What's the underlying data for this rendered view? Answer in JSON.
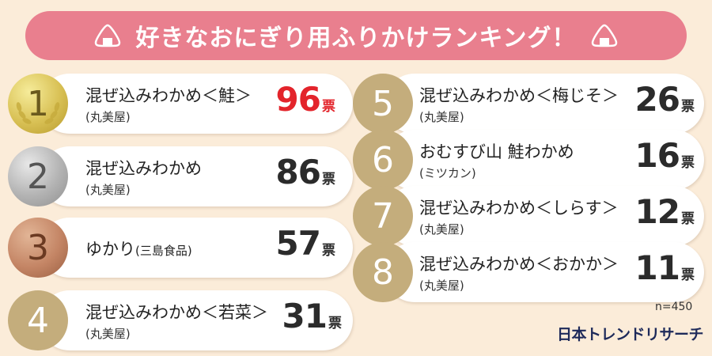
{
  "title": "好きなおにぎり用ふりかけランキング！",
  "icons": {
    "title_left": "onigiri-icon",
    "title_right": "onigiri-icon"
  },
  "colors": {
    "title_bg": "#e97f8e",
    "background": "#fbecd9",
    "first_votes": "#e3242b",
    "medal_plain": "#c4ad7c"
  },
  "vote_unit": "票",
  "sample": "n=450",
  "brand": "日本トレンドリサーチ",
  "chart_data": {
    "type": "table",
    "title": "好きなおにぎり用ふりかけランキング！",
    "columns": [
      "rank",
      "name",
      "maker",
      "votes"
    ],
    "rows": [
      {
        "rank": "1",
        "name": "混ぜ込みわかめ＜鮭＞",
        "maker": "(丸美屋)",
        "votes": 96
      },
      {
        "rank": "2",
        "name": "混ぜ込みわかめ",
        "maker": "(丸美屋)",
        "votes": 86
      },
      {
        "rank": "3",
        "name": "ゆかり",
        "maker": "(三島食品)",
        "votes": 57
      },
      {
        "rank": "4",
        "name": "混ぜ込みわかめ＜若菜＞",
        "maker": "(丸美屋)",
        "votes": 31
      },
      {
        "rank": "5",
        "name": "混ぜ込みわかめ＜梅じそ＞",
        "maker": "(丸美屋)",
        "votes": 26
      },
      {
        "rank": "6",
        "name": "おむすび山 鮭わかめ",
        "maker": "(ミツカン)",
        "votes": 16
      },
      {
        "rank": "7",
        "name": "混ぜ込みわかめ＜しらす＞",
        "maker": "(丸美屋)",
        "votes": 12
      },
      {
        "rank": "8",
        "name": "混ぜ込みわかめ＜おかか＞",
        "maker": "(丸美屋)",
        "votes": 11
      }
    ]
  }
}
